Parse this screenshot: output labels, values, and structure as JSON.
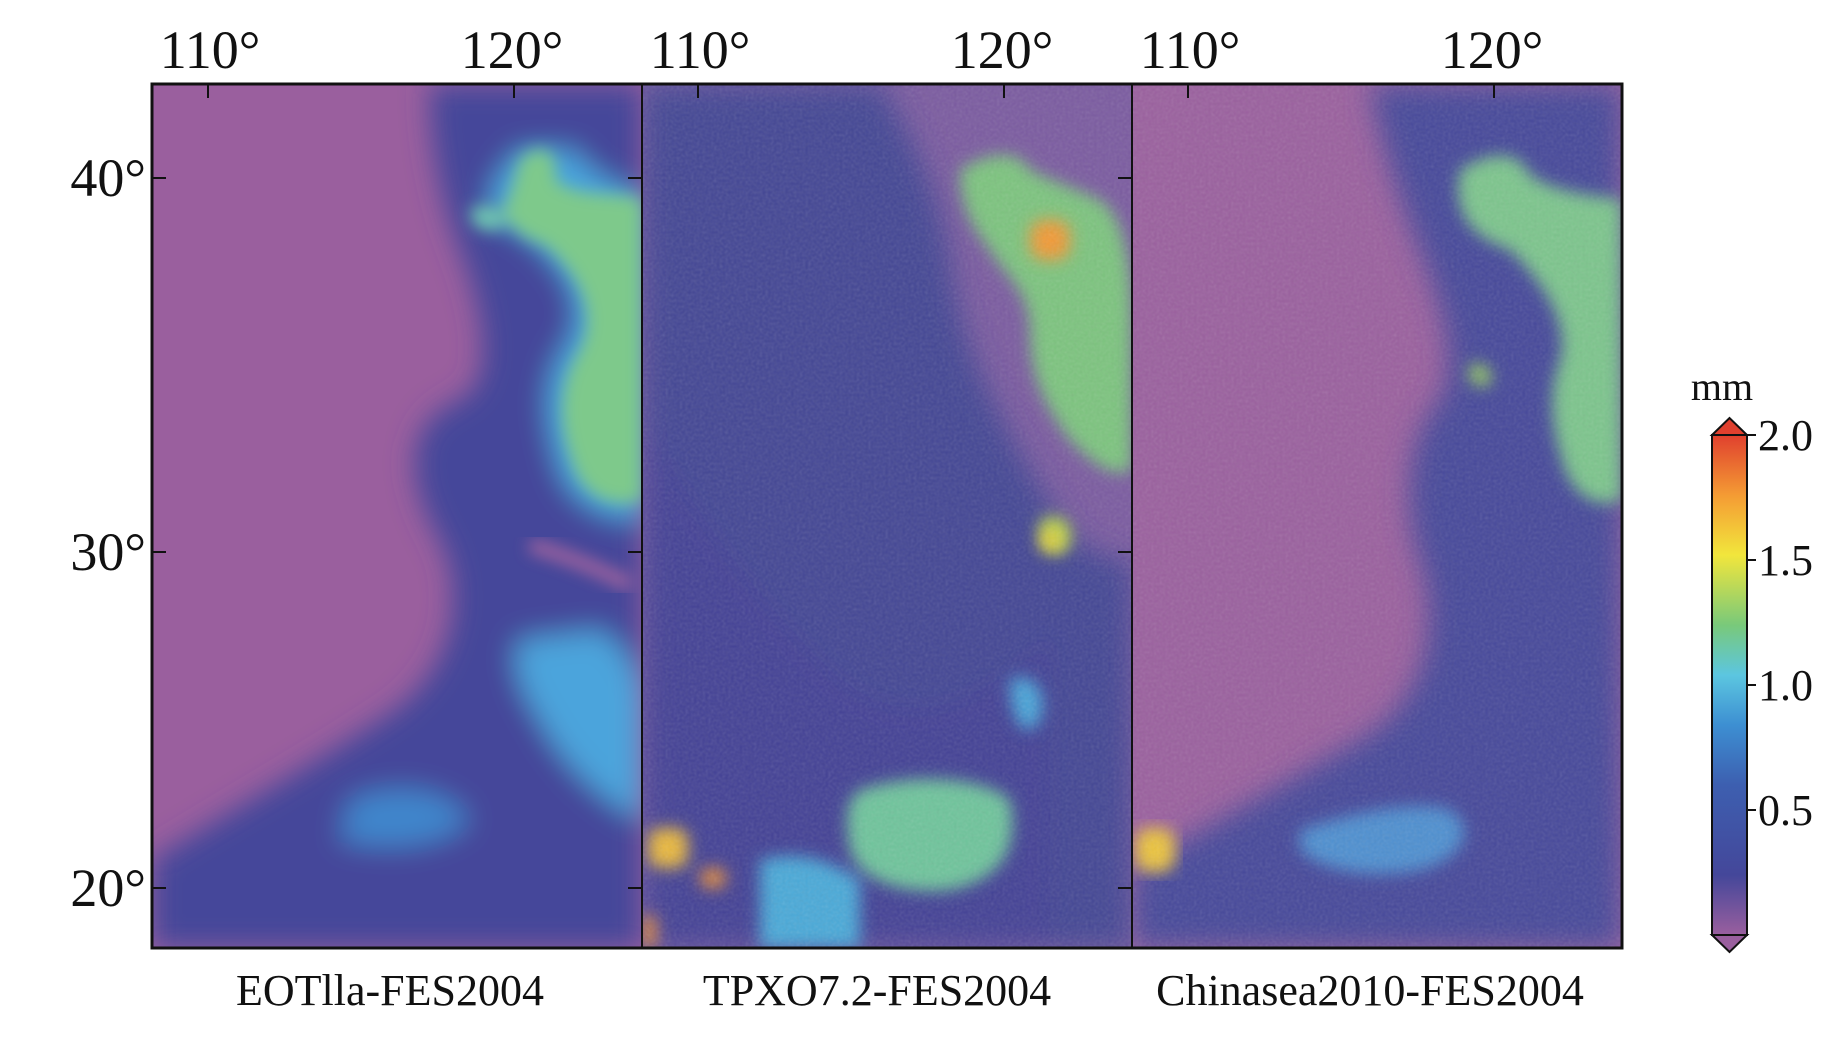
{
  "panels": [
    {
      "id": "eot11a",
      "caption": "EOTlla-FES2004"
    },
    {
      "id": "tpxo72",
      "caption": "TPXO7.2-FES2004"
    },
    {
      "id": "chinasea2010",
      "caption": "Chinasea2010-FES2004"
    }
  ],
  "axes": {
    "lon_ticks": [
      {
        "value": 110,
        "label": "110°"
      },
      {
        "value": 120,
        "label": "120°"
      }
    ],
    "lat_ticks": [
      {
        "value": 40,
        "label": "40°"
      },
      {
        "value": 30,
        "label": "30°"
      },
      {
        "value": 20,
        "label": "20°"
      }
    ]
  },
  "colorbar": {
    "unit": "mm",
    "ticks": [
      "2.0",
      "1.5",
      "1.0",
      "0.5"
    ],
    "extend": "both",
    "colors": [
      "#9a5f9e",
      "#44479a",
      "#3d8fd2",
      "#5cc6e0",
      "#79c97a",
      "#f2e63c",
      "#f49b34",
      "#e0402e"
    ]
  }
}
